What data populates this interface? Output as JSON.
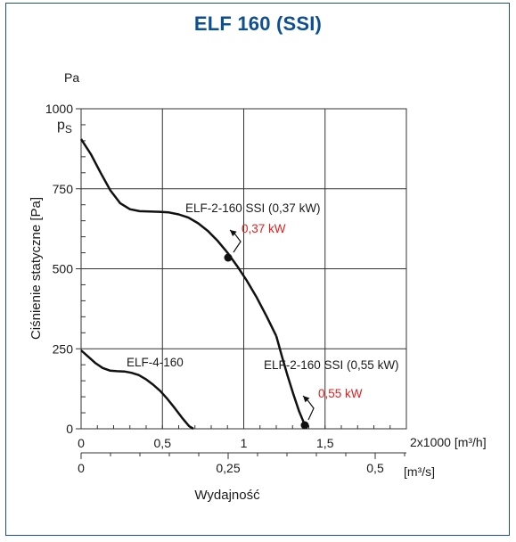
{
  "title": "ELF 160 (SSI)",
  "colors": {
    "title": "#0e4f93",
    "frame": "#1f4e8c",
    "curve": "#111111",
    "power_label": "#e02020",
    "grid": "#333333"
  },
  "chart_data": {
    "type": "line",
    "title": "ELF 160 (SSI)",
    "xlabel": "Wydajność",
    "ylabel": "Ciśnienie statyczne  [Pa]",
    "y_unit_top": "Pa",
    "y_symbol": "ps",
    "x_unit_primary": "2x1000  [m³/h]",
    "x_unit_secondary": "[m³/s]",
    "ylim": [
      0,
      1000
    ],
    "xlim": [
      0,
      2.05
    ],
    "grid": true,
    "y_ticks": [
      "0",
      "250",
      "500",
      "750",
      "1000"
    ],
    "y_tick_values": [
      0,
      250,
      500,
      750,
      1000
    ],
    "x_ticks_primary": [
      "0",
      "0,5",
      "1",
      "1,5"
    ],
    "x_tick_values_primary": [
      0,
      0.5,
      1,
      1.5
    ],
    "x_ticks_secondary": [
      "0",
      "0,25",
      "0,5"
    ],
    "x_tick_values_secondary": [
      0,
      0.25,
      0.5
    ],
    "series": [
      {
        "name": "ELF-2-160 SSI (0,37 kW)",
        "x": [
          0,
          0.05,
          0.1,
          0.15,
          0.2,
          0.25,
          0.3,
          0.35,
          0.4,
          0.45,
          0.5,
          0.55,
          0.6,
          0.65,
          0.7,
          0.75,
          0.8,
          0.85,
          0.9,
          0.95,
          1.0
        ],
        "y": [
          905,
          858,
          800,
          745,
          705,
          686,
          680,
          679,
          678,
          676,
          670,
          660,
          642,
          618,
          587,
          550,
          508,
          462,
          410,
          352,
          290
        ]
      },
      {
        "name": "ELF-2-160 SSI (0,55 kW)",
        "x": [
          1.0,
          1.05,
          1.1,
          1.15,
          1.2,
          1.25
        ],
        "y": [
          290,
          226,
          165,
          108,
          55,
          12
        ]
      },
      {
        "name": "ELF-4-160",
        "x": [
          0,
          0.05,
          0.1,
          0.15,
          0.2,
          0.25,
          0.3,
          0.35,
          0.4,
          0.45,
          0.5,
          0.55,
          0.6,
          0.65,
          0.7,
          0.75,
          0.78
        ],
        "y": [
          245,
          225,
          205,
          190,
          182,
          180,
          179,
          175,
          168,
          155,
          138,
          118,
          93,
          65,
          35,
          8,
          0
        ]
      }
    ],
    "operating_points": [
      {
        "label": "0,37 kW",
        "x": 1.0,
        "y": 535
      },
      {
        "label": "0,55 kW",
        "x": 1.53,
        "y": 13
      }
    ]
  }
}
